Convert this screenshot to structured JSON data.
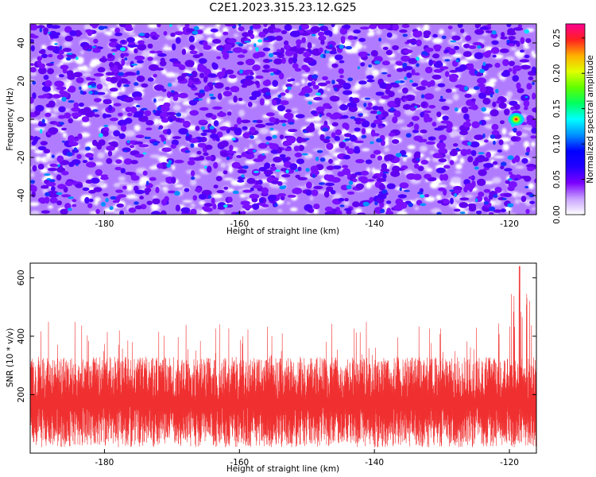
{
  "title": "C2E1.2023.315.23.12.G25",
  "chart_data": [
    {
      "type": "heatmap",
      "xlabel": "Height of straight line (km)",
      "ylabel": "Frequency (Hz)",
      "xlim": [
        -191,
        -116
      ],
      "ylim": [
        -50,
        50
      ],
      "x_ticks": [
        -180,
        -160,
        -140,
        -120
      ],
      "y_ticks": [
        -40,
        -20,
        0,
        20,
        40
      ],
      "colorbar": {
        "label": "Normalized spectral amplitude",
        "range": [
          0.0,
          0.27
        ],
        "ticks": [
          "0.00",
          "0.05",
          "0.10",
          "0.15",
          "0.20",
          "0.25"
        ],
        "colormap": [
          "#ffffff",
          "#c8a2ff",
          "#7b00ff",
          "#2200ff",
          "#0000ff",
          "#0090ff",
          "#00ffff",
          "#00ff60",
          "#60ff00",
          "#e0ff00",
          "#ffb000",
          "#ff2020",
          "#ff0090"
        ]
      },
      "background_level": 0.04,
      "peak": {
        "x": -119,
        "y": 0,
        "value": 0.27
      }
    },
    {
      "type": "line",
      "xlabel": "Height of straight line (km)",
      "ylabel": "SNR (10 * v/v)",
      "xlim": [
        -191,
        -116
      ],
      "ylim": [
        0,
        650
      ],
      "x_ticks": [
        -180,
        -160,
        -140,
        -120
      ],
      "y_ticks": [
        200,
        400,
        600
      ],
      "color": "#f03030",
      "noise_floor_mean": 150,
      "typical_peak": 330,
      "max_value": 640,
      "max_at_x": -118.5
    }
  ]
}
